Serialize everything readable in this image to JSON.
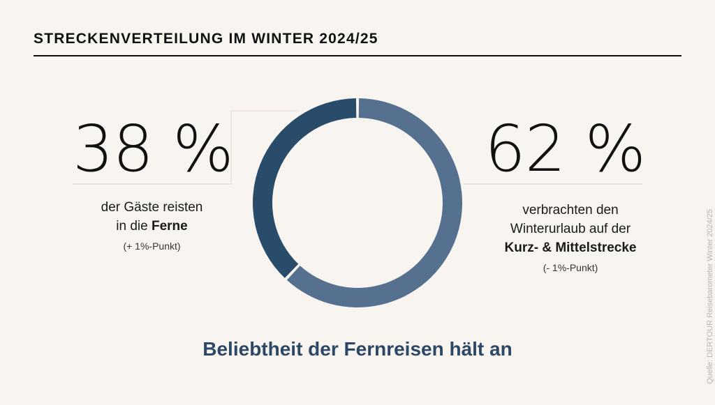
{
  "header": {
    "title": "STRECKENVERTEILUNG IM WINTER 2024/25"
  },
  "chart_data": {
    "type": "pie",
    "donut": true,
    "slices": [
      {
        "value": 62,
        "color": "#56708f"
      },
      {
        "value": 38,
        "color": "#2a4c6b"
      }
    ]
  },
  "left": {
    "value_label": "38 %",
    "line1": "der Gäste reisten",
    "line2_pre": "in die ",
    "line2_bold": "Ferne",
    "note": "(+ 1%-Punkt)"
  },
  "right": {
    "value_label": "62 %",
    "line1": "verbrachten den",
    "line2": "Winterurlaub auf der",
    "line3_bold": "Kurz- & Mittelstrecke",
    "note": "(- 1%-Punkt)"
  },
  "footer": {
    "headline": "Beliebtheit der Fernreisen hält an"
  },
  "source": "Quelle: DERTOUR Reisebarometer Winter 2024/25"
}
